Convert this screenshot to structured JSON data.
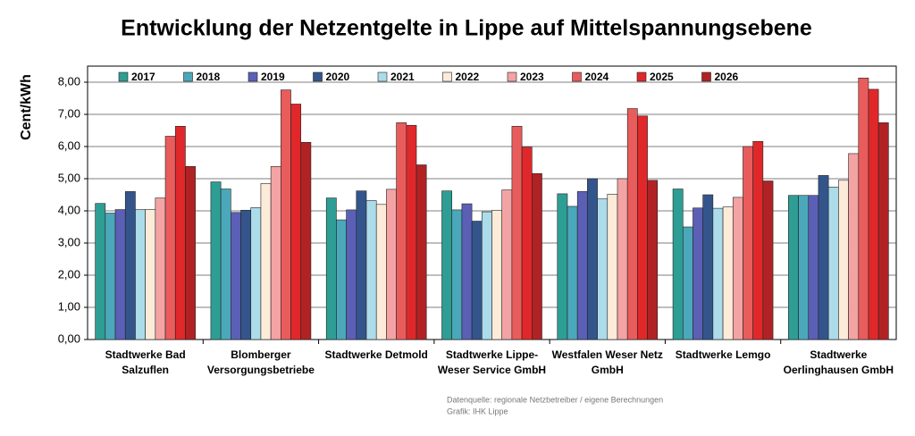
{
  "chart_data": {
    "type": "bar",
    "title": "Entwicklung der Netzentgelte in Lippe auf Mittelspannungsebene",
    "y_label": "Cent/kWh",
    "source": "Datenquelle: regionale Netzbetreiber / eigene Berechnungen",
    "credit": "Grafik: IHK Lippe",
    "categories": [
      "Stadtwerke Bad\nSalzuflen",
      "Blomberger\nVersorgungsbetriebe",
      "Stadtwerke Detmold",
      "Stadtwerke Lippe-\nWeser Service GmbH",
      "Westfalen Weser Netz\nGmbH",
      "Stadtwerke Lemgo",
      "Stadtwerke\nOerlinghausen GmbH"
    ],
    "series": [
      {
        "name": "2017",
        "color": "#2e9e94",
        "values": [
          4.23,
          4.9,
          4.4,
          4.62,
          4.53,
          4.68,
          4.48
        ]
      },
      {
        "name": "2018",
        "color": "#4ba8ba",
        "values": [
          3.93,
          4.68,
          3.72,
          4.03,
          4.14,
          3.5,
          4.48
        ]
      },
      {
        "name": "2019",
        "color": "#5b60b6",
        "values": [
          4.04,
          3.95,
          4.03,
          4.22,
          4.6,
          4.09,
          4.48
        ]
      },
      {
        "name": "2020",
        "color": "#34558c",
        "values": [
          4.6,
          4.02,
          4.62,
          3.68,
          5.0,
          4.5,
          5.1
        ]
      },
      {
        "name": "2021",
        "color": "#acdbea",
        "values": [
          4.04,
          4.1,
          4.32,
          3.97,
          4.37,
          4.08,
          4.74
        ]
      },
      {
        "name": "2022",
        "color": "#fcebd8",
        "values": [
          4.04,
          4.85,
          4.2,
          4.02,
          4.52,
          4.12,
          4.95
        ]
      },
      {
        "name": "2023",
        "color": "#f3a3a3",
        "values": [
          4.4,
          5.38,
          4.67,
          4.65,
          5.0,
          4.42,
          5.78
        ]
      },
      {
        "name": "2024",
        "color": "#e95c5c",
        "values": [
          6.32,
          7.76,
          6.74,
          6.63,
          7.18,
          6.0,
          8.13
        ]
      },
      {
        "name": "2025",
        "color": "#e0282a",
        "values": [
          6.63,
          7.32,
          6.66,
          5.98,
          6.95,
          6.16,
          7.78
        ]
      },
      {
        "name": "2026",
        "color": "#b12224",
        "values": [
          5.38,
          6.13,
          5.43,
          5.16,
          4.95,
          4.93,
          6.74
        ]
      }
    ],
    "ylim": [
      0,
      8.5
    ],
    "yticks": [
      {
        "value": 0,
        "label": "0,00"
      },
      {
        "value": 1,
        "label": "1,00"
      },
      {
        "value": 2,
        "label": "2,00"
      },
      {
        "value": 3,
        "label": "3,00"
      },
      {
        "value": 4,
        "label": "4,00"
      },
      {
        "value": 5,
        "label": "5,00"
      },
      {
        "value": 6,
        "label": "6,00"
      },
      {
        "value": 7,
        "label": "7,00"
      },
      {
        "value": 8,
        "label": "8,00"
      }
    ],
    "grid": true
  }
}
